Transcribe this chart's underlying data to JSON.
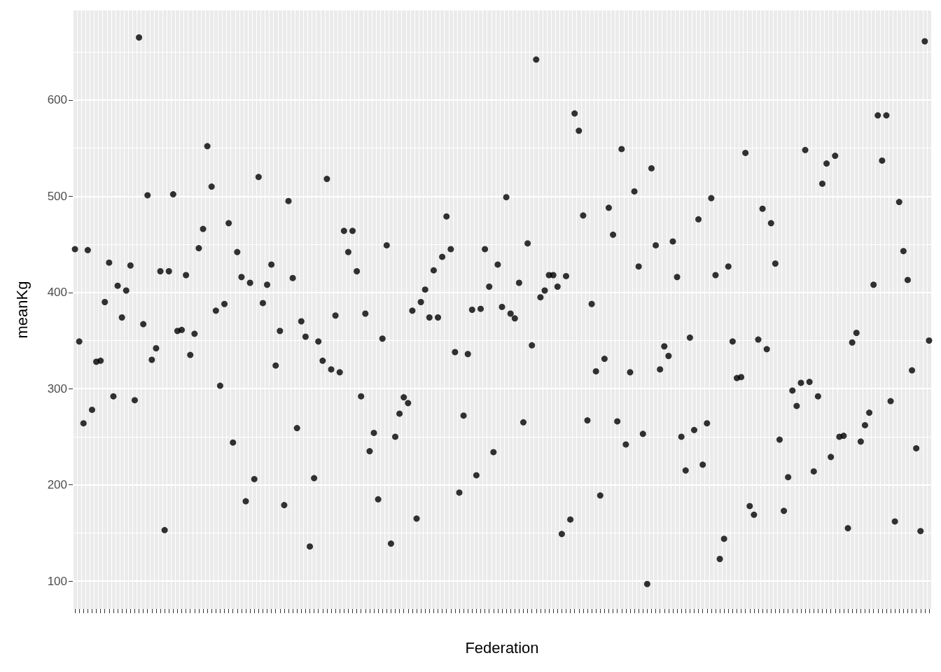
{
  "chart_data": {
    "type": "scatter",
    "xlabel": "Federation",
    "ylabel": "meanKg",
    "color": "#000000",
    "marker": "circle",
    "grid": true,
    "ylim": [
      71,
      693
    ],
    "yticks": [
      100,
      200,
      300,
      400,
      500,
      600
    ],
    "categories": [
      null,
      null,
      null,
      null,
      null,
      null,
      null,
      null,
      null,
      null,
      null,
      null,
      null,
      null,
      null,
      null,
      null,
      null,
      null,
      null,
      null,
      null,
      null,
      null,
      null,
      null,
      null,
      null,
      null,
      null,
      null,
      null,
      null,
      null,
      null,
      null,
      null,
      null,
      null,
      null,
      null,
      null,
      null,
      null,
      null,
      null,
      null,
      null,
      null,
      null,
      null,
      null,
      null,
      null,
      null,
      null,
      null,
      null,
      null,
      null,
      null,
      null,
      null,
      null,
      null,
      null,
      null,
      null,
      null,
      null,
      null,
      null,
      null,
      null,
      null,
      null,
      null,
      null,
      null,
      null,
      null,
      null,
      null,
      null,
      null,
      null,
      null,
      null,
      null,
      null,
      null,
      null,
      null,
      null,
      null,
      null,
      null,
      null,
      null,
      null,
      null,
      null,
      null,
      null,
      null,
      null,
      null,
      null,
      null,
      null,
      null,
      null,
      null,
      null,
      null,
      null,
      null,
      null,
      null,
      null,
      null,
      null,
      null,
      null,
      null,
      null,
      null,
      null,
      null,
      null,
      null,
      null,
      null,
      null,
      null,
      null,
      null,
      null,
      null,
      null,
      null,
      null,
      null,
      null,
      null,
      null,
      null,
      null,
      null,
      null,
      null,
      null,
      null,
      null,
      null,
      null,
      null,
      null,
      null,
      null,
      null,
      null,
      null,
      null,
      null,
      null,
      null,
      null,
      null,
      null,
      null,
      null,
      null,
      null,
      null,
      null,
      null,
      null,
      null,
      null,
      null,
      null,
      null,
      null,
      null,
      null,
      null,
      null,
      null,
      null,
      null,
      null,
      null,
      null,
      null,
      null,
      null,
      null,
      null,
      null,
      null
    ],
    "values": [
      445,
      349,
      264,
      444,
      278,
      328,
      329,
      390,
      431,
      292,
      407,
      374,
      402,
      428,
      288,
      665,
      367,
      501,
      330,
      342,
      422,
      153,
      422,
      502,
      360,
      361,
      418,
      335,
      357,
      446,
      466,
      552,
      510,
      381,
      303,
      388,
      472,
      244,
      442,
      416,
      183,
      410,
      206,
      520,
      389,
      408,
      429,
      324,
      360,
      179,
      495,
      415,
      259,
      370,
      354,
      136,
      207,
      349,
      329,
      518,
      320,
      376,
      317,
      464,
      442,
      464,
      422,
      292,
      378,
      235,
      254,
      185,
      352,
      449,
      139,
      250,
      274,
      291,
      285,
      381,
      165,
      390,
      403,
      374,
      423,
      374,
      437,
      479,
      445,
      338,
      192,
      272,
      336,
      382,
      210,
      383,
      445,
      406,
      234,
      429,
      385,
      499,
      378,
      373,
      410,
      265,
      451,
      345,
      642,
      395,
      402,
      418,
      418,
      406,
      149,
      417,
      164,
      586,
      568,
      480,
      267,
      388,
      318,
      189,
      331,
      488,
      460,
      266,
      549,
      242,
      317,
      505,
      427,
      253,
      97,
      529,
      449,
      320,
      344,
      334,
      453,
      416,
      250,
      215,
      353,
      257,
      476,
      221,
      264,
      498,
      418,
      123,
      144,
      427,
      349,
      311,
      312,
      545,
      178,
      169,
      351,
      487,
      341,
      472,
      430,
      247,
      173,
      208,
      298,
      282,
      306,
      548,
      307,
      214,
      292,
      513,
      534,
      229,
      542,
      250,
      251,
      155,
      348,
      358,
      245,
      262,
      275,
      408,
      584,
      537,
      584,
      287,
      162,
      494,
      443,
      413,
      319,
      238,
      152,
      661,
      350
    ]
  }
}
